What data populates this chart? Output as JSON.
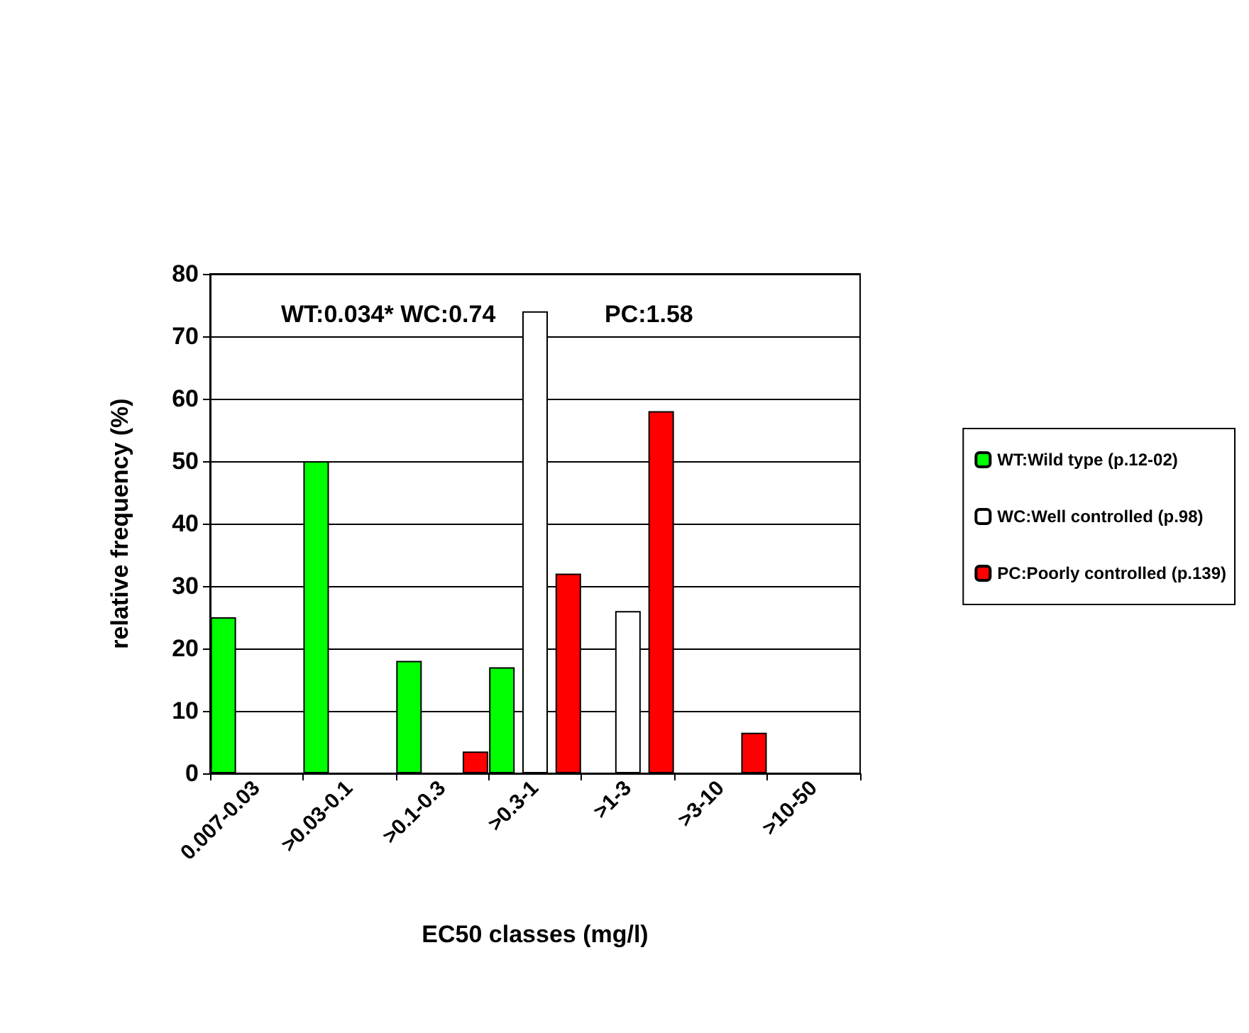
{
  "chart_data": {
    "type": "bar",
    "xlabel": "EC50 classes (mg/l)",
    "ylabel": "relative frequency (%)",
    "categories": [
      "0.007-0.03",
      ">0.03-0.1",
      ">0.1-0.3",
      ">0.3-1",
      ">1-3",
      ">3-10",
      ">10-50"
    ],
    "series": [
      {
        "name": "WT:Wild type (p.12-02)",
        "color": "#00ff00",
        "values": [
          25,
          50,
          18,
          17,
          null,
          null,
          null
        ]
      },
      {
        "name": "WC:Well controlled (p.98)",
        "color": "#ffffff",
        "values": [
          null,
          null,
          null,
          74,
          26,
          null,
          null
        ]
      },
      {
        "name": "PC:Poorly controlled (p.139)",
        "color": "#ff0000",
        "values": [
          null,
          null,
          3.5,
          32,
          58,
          6.5,
          null
        ]
      }
    ],
    "ylim": [
      0,
      80
    ],
    "yticks": [
      0,
      10,
      20,
      30,
      40,
      50,
      60,
      70,
      80
    ],
    "grid": "y",
    "legend": "right",
    "annotations": [
      "WT:0.034* WC:0.74",
      "PC:1.58"
    ]
  }
}
